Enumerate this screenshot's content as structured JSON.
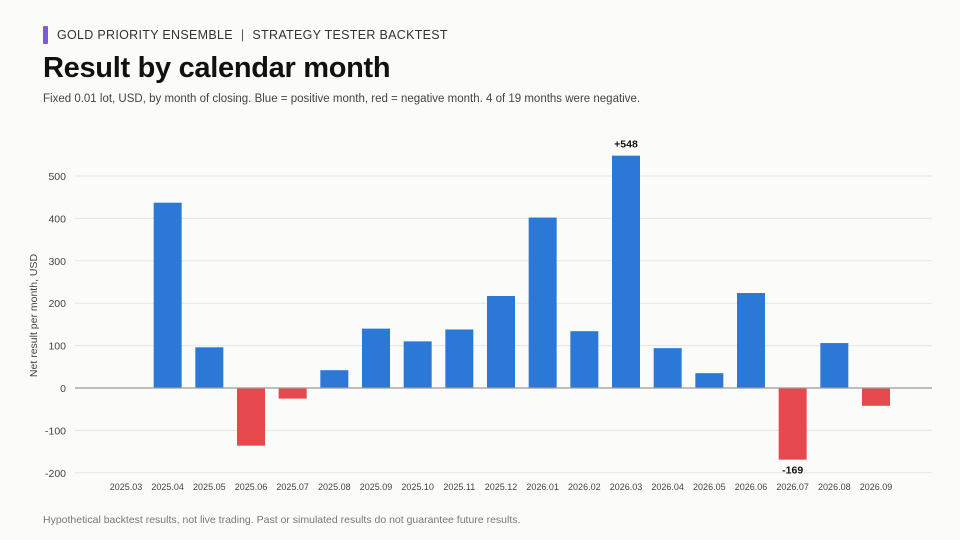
{
  "header": {
    "eyebrow_left": "GOLD PRIORITY ENSEMBLE",
    "eyebrow_sep": "|",
    "eyebrow_right": "STRATEGY TESTER BACKTEST"
  },
  "footer": "Hypothetical backtest results, not live trading. Past or simulated results do not guarantee future results.",
  "colors": {
    "positive": "#2b78d6",
    "negative": "#e5484d",
    "accent": "#7b5cd6"
  },
  "chart_data": {
    "type": "bar",
    "title": "Result by calendar month",
    "subtitle": "Fixed 0.01 lot, USD, by month of closing. Blue = positive month, red = negative month. 4 of 19 months were negative.",
    "xlabel": "",
    "ylabel": "Net result per month, USD",
    "ylim": [
      -200,
      500
    ],
    "yticks": [
      -200,
      -100,
      0,
      100,
      200,
      300,
      400,
      500
    ],
    "ytick_labels": [
      "-200",
      "-100",
      "0",
      "100",
      "200",
      "300",
      "400",
      "500"
    ],
    "grid": true,
    "categories": [
      "2025.03",
      "2025.04",
      "2025.05",
      "2025.06",
      "2025.07",
      "2025.08",
      "2025.09",
      "2025.10",
      "2025.11",
      "2025.12",
      "2026.01",
      "2026.02",
      "2026.03",
      "2026.04",
      "2026.05",
      "2026.06",
      "2026.07",
      "2026.08",
      "2026.09"
    ],
    "values": [
      0,
      437,
      96,
      -136,
      -25,
      42,
      140,
      110,
      138,
      217,
      402,
      134,
      548,
      94,
      35,
      224,
      -169,
      106,
      -42
    ],
    "annotations": [
      {
        "category": "2026.03",
        "text": "+548"
      },
      {
        "category": "2026.07",
        "text": "-169"
      }
    ]
  }
}
